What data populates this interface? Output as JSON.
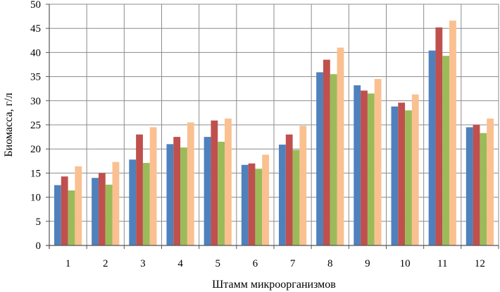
{
  "chart_data": {
    "type": "bar",
    "title": "",
    "xlabel": "Штамм микроорганизмов",
    "ylabel": "Биомасса, г/л",
    "ylim": [
      0,
      50
    ],
    "yticks": [
      0,
      5,
      10,
      15,
      20,
      25,
      30,
      35,
      40,
      45,
      50
    ],
    "grid": true,
    "legend": "none",
    "categories": [
      "1",
      "2",
      "3",
      "4",
      "5",
      "6",
      "7",
      "8",
      "9",
      "10",
      "11",
      "12"
    ],
    "series": [
      {
        "color": "#4f81bd",
        "values": [
          12.5,
          14.0,
          17.8,
          21.0,
          22.5,
          16.7,
          20.9,
          35.9,
          33.2,
          28.8,
          40.4,
          24.5
        ]
      },
      {
        "color": "#c0504d",
        "values": [
          14.3,
          15.0,
          23.0,
          22.5,
          25.9,
          17.0,
          23.0,
          38.5,
          32.1,
          29.6,
          45.2,
          25.0
        ]
      },
      {
        "color": "#9bbb59",
        "values": [
          11.4,
          12.6,
          17.1,
          20.3,
          21.5,
          15.9,
          19.8,
          35.5,
          31.5,
          28.0,
          39.3,
          23.3
        ]
      },
      {
        "color": "#fac090",
        "values": [
          16.4,
          17.3,
          24.5,
          25.5,
          26.3,
          18.8,
          24.8,
          41.0,
          34.5,
          31.3,
          46.6,
          26.3
        ]
      }
    ]
  }
}
